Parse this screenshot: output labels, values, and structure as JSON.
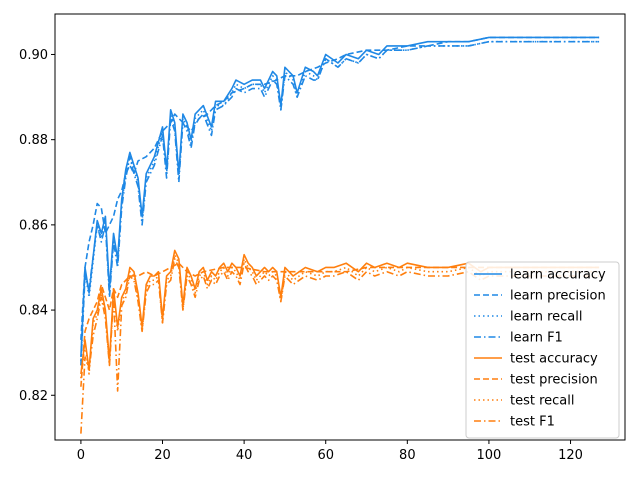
{
  "chart_data": {
    "type": "line",
    "title": "",
    "xlabel": "",
    "ylabel": "",
    "xlim": [
      -6.35,
      133.35
    ],
    "ylim": [
      0.8095,
      0.9095
    ],
    "xticks": [
      0,
      20,
      40,
      60,
      80,
      100,
      120
    ],
    "xtick_labels": [
      "0",
      "20",
      "40",
      "60",
      "80",
      "100",
      "120"
    ],
    "yticks": [
      0.82,
      0.84,
      0.86,
      0.88,
      0.9
    ],
    "ytick_labels": [
      "0.82",
      "0.84",
      "0.86",
      "0.88",
      "0.90"
    ],
    "grid": false,
    "legend_placement": "lower-right",
    "colors": {
      "learn": "#1f88e5",
      "test": "#ff7f0e"
    },
    "series": [
      {
        "name": "learn accuracy",
        "color": "#1f88e5",
        "dash": "solid",
        "x": [
          0,
          1,
          2,
          4,
          5,
          6,
          7,
          8,
          9,
          10,
          11,
          12,
          13,
          14,
          15,
          16,
          18,
          20,
          21,
          22,
          23,
          24,
          25,
          26,
          27,
          28,
          30,
          32,
          33,
          35,
          37,
          38,
          40,
          42,
          44,
          45,
          47,
          48,
          49,
          50,
          52,
          53,
          55,
          57,
          58,
          60,
          63,
          65,
          68,
          70,
          73,
          75,
          78,
          80,
          85,
          90,
          95,
          100,
          105,
          110,
          115,
          120,
          124,
          127
        ],
        "values": [
          0.829,
          0.85,
          0.844,
          0.861,
          0.858,
          0.862,
          0.845,
          0.858,
          0.852,
          0.866,
          0.873,
          0.877,
          0.874,
          0.871,
          0.862,
          0.872,
          0.876,
          0.883,
          0.873,
          0.887,
          0.884,
          0.872,
          0.886,
          0.884,
          0.88,
          0.886,
          0.888,
          0.883,
          0.889,
          0.889,
          0.892,
          0.894,
          0.893,
          0.894,
          0.894,
          0.892,
          0.896,
          0.895,
          0.888,
          0.897,
          0.895,
          0.891,
          0.897,
          0.896,
          0.895,
          0.9,
          0.898,
          0.9,
          0.899,
          0.901,
          0.9,
          0.902,
          0.902,
          0.902,
          0.903,
          0.903,
          0.903,
          0.904,
          0.904,
          0.904,
          0.904,
          0.904,
          0.904,
          0.904
        ]
      },
      {
        "name": "learn precision",
        "color": "#1f88e5",
        "dash": "dashed",
        "x": [
          0,
          1,
          2,
          3,
          4,
          5,
          6,
          7,
          8,
          9,
          10,
          11,
          12,
          13,
          14,
          16,
          18,
          20,
          22,
          23,
          25,
          27,
          29,
          31,
          33,
          35,
          37,
          40,
          42,
          45,
          48,
          50,
          53,
          55,
          58,
          60,
          63,
          65,
          70,
          75,
          80,
          85,
          90,
          95,
          100,
          105,
          110,
          115,
          120,
          127
        ],
        "values": [
          0.833,
          0.85,
          0.856,
          0.86,
          0.865,
          0.864,
          0.858,
          0.86,
          0.862,
          0.866,
          0.868,
          0.872,
          0.874,
          0.872,
          0.875,
          0.876,
          0.878,
          0.882,
          0.884,
          0.886,
          0.884,
          0.882,
          0.885,
          0.886,
          0.888,
          0.889,
          0.891,
          0.892,
          0.893,
          0.893,
          0.894,
          0.895,
          0.895,
          0.896,
          0.897,
          0.898,
          0.899,
          0.9,
          0.901,
          0.901,
          0.902,
          0.902,
          0.903,
          0.903,
          0.904,
          0.904,
          0.904,
          0.904,
          0.904,
          0.904
        ]
      },
      {
        "name": "learn recall",
        "color": "#1f88e5",
        "dash": "dotted",
        "x": [
          0,
          1,
          2,
          4,
          5,
          6,
          7,
          8,
          9,
          10,
          11,
          12,
          13,
          14,
          15,
          16,
          18,
          20,
          21,
          22,
          23,
          24,
          25,
          26,
          27,
          28,
          30,
          32,
          33,
          35,
          37,
          38,
          40,
          42,
          44,
          45,
          47,
          48,
          49,
          50,
          52,
          53,
          55,
          57,
          58,
          60,
          63,
          65,
          68,
          70,
          73,
          75,
          78,
          80,
          85,
          90,
          95,
          100,
          105,
          110,
          115,
          120,
          124,
          127
        ],
        "values": [
          0.828,
          0.849,
          0.843,
          0.86,
          0.857,
          0.861,
          0.844,
          0.857,
          0.851,
          0.865,
          0.872,
          0.876,
          0.873,
          0.87,
          0.861,
          0.871,
          0.875,
          0.882,
          0.872,
          0.886,
          0.883,
          0.871,
          0.885,
          0.883,
          0.879,
          0.885,
          0.887,
          0.882,
          0.888,
          0.888,
          0.891,
          0.893,
          0.892,
          0.893,
          0.893,
          0.891,
          0.895,
          0.894,
          0.887,
          0.896,
          0.894,
          0.89,
          0.896,
          0.895,
          0.894,
          0.899,
          0.897,
          0.899,
          0.898,
          0.9,
          0.899,
          0.901,
          0.901,
          0.901,
          0.902,
          0.902,
          0.902,
          0.903,
          0.903,
          0.903,
          0.903,
          0.903,
          0.903,
          0.903
        ]
      },
      {
        "name": "learn F1",
        "color": "#1f88e5",
        "dash": "dashdot",
        "x": [
          0,
          1,
          2,
          4,
          5,
          6,
          7,
          8,
          9,
          10,
          11,
          12,
          13,
          14,
          15,
          16,
          18,
          20,
          21,
          22,
          23,
          24,
          25,
          26,
          27,
          28,
          30,
          32,
          33,
          35,
          37,
          38,
          40,
          42,
          44,
          45,
          47,
          48,
          49,
          50,
          52,
          53,
          55,
          57,
          58,
          60,
          63,
          65,
          68,
          70,
          73,
          75,
          78,
          80,
          85,
          90,
          95,
          100,
          105,
          110,
          115,
          120,
          124,
          127
        ],
        "values": [
          0.827,
          0.848,
          0.845,
          0.86,
          0.856,
          0.86,
          0.843,
          0.856,
          0.85,
          0.864,
          0.871,
          0.876,
          0.872,
          0.869,
          0.86,
          0.87,
          0.874,
          0.881,
          0.871,
          0.885,
          0.882,
          0.87,
          0.884,
          0.882,
          0.878,
          0.884,
          0.886,
          0.881,
          0.887,
          0.888,
          0.89,
          0.892,
          0.891,
          0.892,
          0.892,
          0.89,
          0.894,
          0.893,
          0.887,
          0.895,
          0.893,
          0.89,
          0.895,
          0.894,
          0.894,
          0.899,
          0.897,
          0.899,
          0.898,
          0.9,
          0.899,
          0.901,
          0.901,
          0.901,
          0.902,
          0.902,
          0.902,
          0.903,
          0.903,
          0.903,
          0.903,
          0.903,
          0.903,
          0.903
        ]
      },
      {
        "name": "test accuracy",
        "color": "#ff7f0e",
        "dash": "solid",
        "x": [
          0,
          1,
          2,
          3,
          4,
          5,
          6,
          7,
          8,
          9,
          10,
          11,
          12,
          13,
          14,
          15,
          16,
          17,
          18,
          19,
          20,
          21,
          22,
          23,
          24,
          25,
          26,
          27,
          28,
          29,
          30,
          31,
          32,
          33,
          34,
          35,
          36,
          37,
          38,
          39,
          40,
          41,
          42,
          43,
          44,
          45,
          46,
          47,
          48,
          49,
          50,
          52,
          55,
          58,
          60,
          62,
          65,
          68,
          70,
          72,
          75,
          78,
          80,
          85,
          88,
          90,
          95,
          98,
          100,
          105,
          110,
          115,
          120,
          125,
          127
        ],
        "values": [
          0.825,
          0.833,
          0.826,
          0.838,
          0.84,
          0.845,
          0.84,
          0.828,
          0.845,
          0.836,
          0.843,
          0.845,
          0.85,
          0.849,
          0.844,
          0.836,
          0.846,
          0.848,
          0.848,
          0.849,
          0.838,
          0.848,
          0.849,
          0.854,
          0.852,
          0.841,
          0.85,
          0.848,
          0.845,
          0.849,
          0.85,
          0.847,
          0.849,
          0.848,
          0.85,
          0.851,
          0.849,
          0.851,
          0.85,
          0.848,
          0.853,
          0.851,
          0.85,
          0.848,
          0.849,
          0.85,
          0.849,
          0.85,
          0.849,
          0.843,
          0.85,
          0.848,
          0.85,
          0.849,
          0.85,
          0.85,
          0.851,
          0.849,
          0.851,
          0.85,
          0.851,
          0.85,
          0.851,
          0.85,
          0.85,
          0.85,
          0.851,
          0.849,
          0.85,
          0.85,
          0.85,
          0.85,
          0.85,
          0.85,
          0.85
        ]
      },
      {
        "name": "test precision",
        "color": "#ff7f0e",
        "dash": "dashed",
        "x": [
          0,
          1,
          2,
          3,
          4,
          5,
          6,
          7,
          8,
          9,
          10,
          12,
          14,
          16,
          18,
          20,
          22,
          24,
          26,
          28,
          30,
          35,
          40,
          45,
          50,
          55,
          60,
          65,
          70,
          75,
          80,
          85,
          90,
          95,
          100,
          105,
          110,
          115,
          120,
          127
        ],
        "values": [
          0.822,
          0.835,
          0.838,
          0.84,
          0.842,
          0.846,
          0.843,
          0.84,
          0.845,
          0.843,
          0.846,
          0.848,
          0.848,
          0.849,
          0.848,
          0.849,
          0.85,
          0.851,
          0.849,
          0.848,
          0.849,
          0.85,
          0.85,
          0.849,
          0.849,
          0.849,
          0.849,
          0.849,
          0.85,
          0.85,
          0.85,
          0.85,
          0.85,
          0.85,
          0.85,
          0.85,
          0.85,
          0.85,
          0.85,
          0.85
        ]
      },
      {
        "name": "test recall",
        "color": "#ff7f0e",
        "dash": "dotted",
        "x": [
          0,
          1,
          2,
          3,
          4,
          5,
          6,
          7,
          8,
          9,
          10,
          11,
          12,
          13,
          14,
          15,
          16,
          17,
          18,
          19,
          20,
          21,
          22,
          23,
          24,
          25,
          26,
          27,
          28,
          29,
          30,
          31,
          32,
          33,
          34,
          35,
          36,
          37,
          38,
          39,
          40,
          41,
          42,
          43,
          44,
          45,
          46,
          47,
          48,
          49,
          50,
          52,
          55,
          58,
          60,
          62,
          65,
          68,
          70,
          72,
          75,
          78,
          80,
          85,
          88,
          90,
          95,
          98,
          100,
          105,
          110,
          115,
          120,
          125,
          127
        ],
        "values": [
          0.824,
          0.832,
          0.825,
          0.837,
          0.839,
          0.844,
          0.839,
          0.827,
          0.844,
          0.835,
          0.842,
          0.844,
          0.849,
          0.848,
          0.843,
          0.835,
          0.845,
          0.847,
          0.847,
          0.848,
          0.837,
          0.847,
          0.848,
          0.853,
          0.851,
          0.84,
          0.849,
          0.847,
          0.844,
          0.848,
          0.849,
          0.846,
          0.848,
          0.847,
          0.849,
          0.85,
          0.848,
          0.85,
          0.849,
          0.847,
          0.852,
          0.85,
          0.849,
          0.847,
          0.848,
          0.849,
          0.848,
          0.849,
          0.848,
          0.842,
          0.849,
          0.847,
          0.849,
          0.848,
          0.849,
          0.849,
          0.85,
          0.848,
          0.85,
          0.849,
          0.85,
          0.849,
          0.85,
          0.849,
          0.849,
          0.849,
          0.85,
          0.848,
          0.849,
          0.849,
          0.849,
          0.849,
          0.849,
          0.849,
          0.849
        ]
      },
      {
        "name": "test F1",
        "color": "#ff7f0e",
        "dash": "dashdot",
        "x": [
          0,
          1,
          2,
          3,
          4,
          5,
          6,
          7,
          8,
          9,
          10,
          11,
          12,
          13,
          14,
          15,
          16,
          17,
          18,
          19,
          20,
          21,
          22,
          23,
          24,
          25,
          26,
          27,
          28,
          29,
          30,
          31,
          32,
          33,
          34,
          35,
          36,
          37,
          38,
          39,
          40,
          41,
          42,
          43,
          44,
          45,
          46,
          47,
          48,
          49,
          50,
          52,
          55,
          58,
          60,
          62,
          65,
          68,
          70,
          72,
          75,
          78,
          80,
          85,
          88,
          90,
          95,
          98,
          100,
          105,
          110,
          115,
          120,
          125,
          127
        ],
        "values": [
          0.811,
          0.829,
          0.826,
          0.834,
          0.838,
          0.843,
          0.838,
          0.827,
          0.843,
          0.821,
          0.841,
          0.843,
          0.848,
          0.847,
          0.842,
          0.835,
          0.844,
          0.846,
          0.846,
          0.847,
          0.837,
          0.846,
          0.847,
          0.852,
          0.85,
          0.84,
          0.848,
          0.846,
          0.843,
          0.847,
          0.848,
          0.845,
          0.847,
          0.846,
          0.848,
          0.849,
          0.847,
          0.849,
          0.848,
          0.846,
          0.851,
          0.849,
          0.848,
          0.846,
          0.847,
          0.848,
          0.847,
          0.848,
          0.847,
          0.842,
          0.848,
          0.846,
          0.848,
          0.847,
          0.848,
          0.848,
          0.849,
          0.847,
          0.849,
          0.848,
          0.849,
          0.848,
          0.849,
          0.848,
          0.848,
          0.848,
          0.849,
          0.847,
          0.848,
          0.848,
          0.848,
          0.848,
          0.848,
          0.848,
          0.848
        ]
      }
    ]
  }
}
